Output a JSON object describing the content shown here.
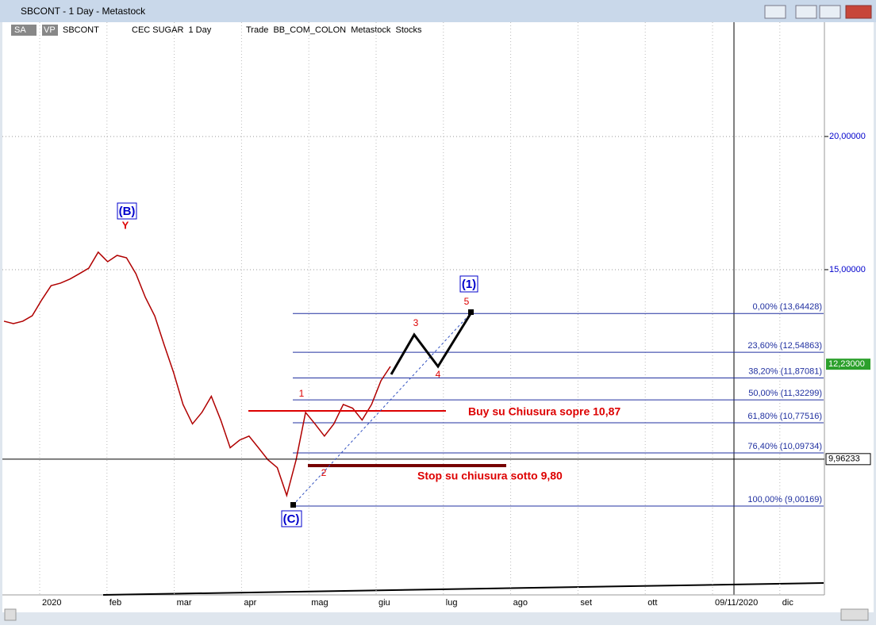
{
  "window": {
    "title": "SBCONT - 1 Day - Metastock"
  },
  "toolbar": {
    "sa": "SA",
    "vp": "VP",
    "symbol": "SBCONT",
    "name": "CEC SUGAR  1 Day",
    "info": "Trade  BB_COM_COLON  Metastock  Stocks"
  },
  "chart_data": {
    "type": "line",
    "log_scale": true,
    "color": "#b00000",
    "values": [
      13.42,
      13.35,
      13.42,
      13.58,
      14.05,
      14.49,
      14.57,
      14.7,
      14.87,
      15.05,
      15.58,
      15.26,
      15.47,
      15.39,
      14.87,
      14.13,
      13.57,
      12.75,
      12.01,
      11.21,
      10.75,
      11.02,
      11.41,
      10.84,
      10.21,
      10.38,
      10.47,
      10.21,
      9.95,
      9.78,
      9.21,
      9.95,
      11.02,
      10.75,
      10.47,
      10.75,
      11.21,
      11.12,
      10.84,
      11.21,
      11.8,
      12.17
    ],
    "ylim": [
      7.43,
      25.6
    ],
    "yticks": [
      {
        "value": 15,
        "label": "15,00000"
      },
      {
        "value": 20,
        "label": "20,00000"
      }
    ],
    "x_labels": [
      "2020",
      "feb",
      "mar",
      "apr",
      "mag",
      "giu",
      "lug",
      "ago",
      "set",
      "ott",
      "09/11/2020",
      "dic"
    ],
    "fib_levels": [
      {
        "value": 13.64428,
        "label": "0,00% (13,64428)"
      },
      {
        "value": 12.54863,
        "label": "23,60% (12,54863)"
      },
      {
        "value": 11.87081,
        "label": "38,20% (11,87081)"
      },
      {
        "value": 11.32299,
        "label": "50,00% (11,32299)"
      },
      {
        "value": 10.77516,
        "label": "61,80% (10,77516)"
      },
      {
        "value": 10.09734,
        "label": "76,40% (10,09734)"
      },
      {
        "value": 9.00169,
        "label": "100,00% (9,00169)"
      }
    ],
    "last_price": {
      "value": 12.23,
      "label": "12,23000"
    },
    "cursor_price": {
      "value": 9.96233,
      "label": "9,96233"
    },
    "annotations": {
      "b": "(B)",
      "y": "Y",
      "c": "(C)",
      "one_big": "(1)",
      "w1": "1",
      "w2": "2",
      "w3": "3",
      "w4": "4",
      "w5": "5",
      "buy": "Buy su Chiusura sopre 10,87",
      "stop": "Stop su chiusura sotto 9,80"
    }
  }
}
